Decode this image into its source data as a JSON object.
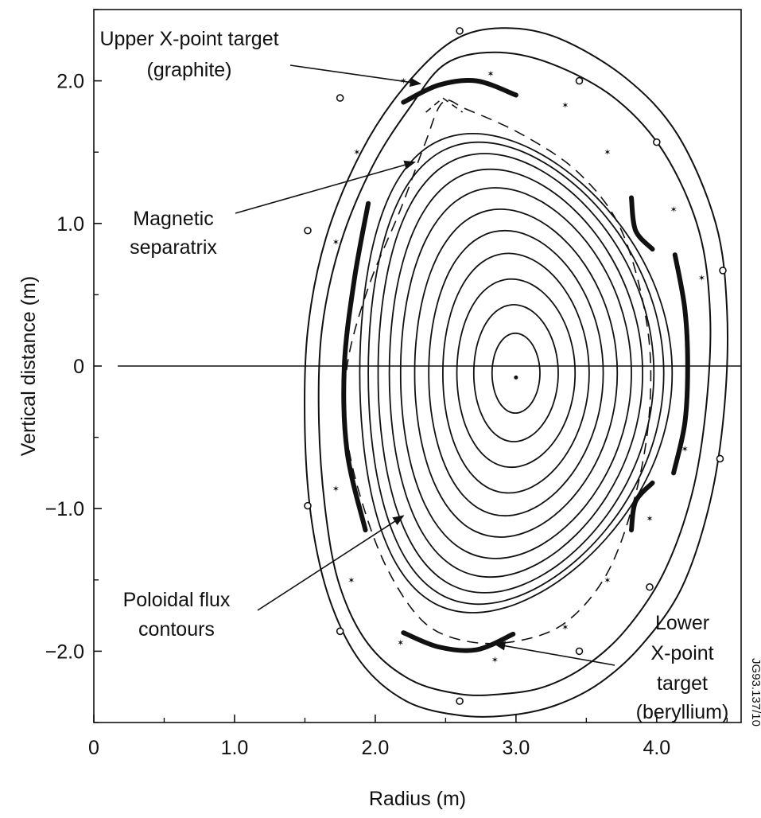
{
  "chart_data": {
    "type": "line",
    "xlabel": "Radius (m)",
    "ylabel": "Vertical distance (m)",
    "xlim": [
      0,
      4.6
    ],
    "ylim": [
      -2.5,
      2.5
    ],
    "x_ticks": [
      {
        "value": 0,
        "label": "0"
      },
      {
        "value": 1,
        "label": "1.0"
      },
      {
        "value": 2,
        "label": "2.0"
      },
      {
        "value": 3,
        "label": "3.0"
      },
      {
        "value": 4,
        "label": "4.0"
      }
    ],
    "y_ticks": [
      {
        "value": 2,
        "label": "2.0"
      },
      {
        "value": 1,
        "label": "1.0"
      },
      {
        "value": 0,
        "label": "0"
      },
      {
        "value": -1,
        "label": "−1.0"
      },
      {
        "value": -2,
        "label": "−2.0"
      }
    ],
    "magnetic_axis": {
      "r": 3.0,
      "z": -0.08
    },
    "flux_contours": {
      "center_r": 3.0,
      "center_z": -0.05,
      "levels": [
        {
          "a": 0.17,
          "b": 0.28
        },
        {
          "a": 0.3,
          "b": 0.48
        },
        {
          "a": 0.42,
          "b": 0.66
        },
        {
          "a": 0.52,
          "b": 0.84
        },
        {
          "a": 0.62,
          "b": 1.0
        },
        {
          "a": 0.72,
          "b": 1.15
        },
        {
          "a": 0.82,
          "b": 1.3
        },
        {
          "a": 0.9,
          "b": 1.43
        },
        {
          "a": 0.98,
          "b": 1.54
        },
        {
          "a": 1.05,
          "b": 1.62
        },
        {
          "a": 1.11,
          "b": 1.68
        }
      ]
    },
    "separatrix": {
      "r": [
        2.48,
        2.35,
        2.18,
        1.95,
        1.8,
        1.8,
        1.92,
        2.1,
        2.35,
        2.65,
        3.0,
        3.35,
        3.65,
        3.85,
        3.95,
        3.93,
        3.75,
        3.45,
        3.05,
        2.65,
        2.48
      ],
      "z": [
        1.85,
        1.55,
        1.1,
        0.55,
        0.0,
        -0.5,
        -1.0,
        -1.45,
        -1.8,
        -1.93,
        -1.93,
        -1.8,
        -1.45,
        -0.9,
        -0.3,
        0.3,
        0.95,
        1.35,
        1.62,
        1.8,
        1.85
      ]
    },
    "vessel_inner": {
      "r": [
        2.5,
        2.25,
        1.98,
        1.75,
        1.62,
        1.6,
        1.65,
        1.75,
        1.95,
        2.25,
        2.6,
        2.9,
        3.2,
        3.5,
        3.78,
        4.05,
        4.25,
        4.35,
        4.38,
        4.3,
        4.05,
        3.7,
        3.25,
        2.85,
        2.5
      ],
      "z": [
        2.12,
        1.82,
        1.4,
        0.85,
        0.25,
        -0.4,
        -1.05,
        -1.55,
        -1.95,
        -2.2,
        -2.3,
        -2.3,
        -2.25,
        -2.1,
        -1.85,
        -1.45,
        -0.9,
        -0.3,
        0.35,
        0.95,
        1.5,
        1.88,
        2.12,
        2.2,
        2.12
      ]
    },
    "vessel_outer": {
      "r": [
        2.55,
        2.2,
        1.9,
        1.65,
        1.52,
        1.5,
        1.55,
        1.68,
        1.9,
        2.22,
        2.6,
        2.95,
        3.28,
        3.6,
        3.9,
        4.18,
        4.38,
        4.48,
        4.5,
        4.42,
        4.15,
        3.78,
        3.3,
        2.9,
        2.55
      ],
      "z": [
        2.28,
        1.95,
        1.5,
        0.9,
        0.25,
        -0.45,
        -1.1,
        -1.65,
        -2.08,
        -2.35,
        -2.45,
        -2.45,
        -2.38,
        -2.22,
        -1.95,
        -1.55,
        -0.95,
        -0.3,
        0.38,
        1.0,
        1.62,
        2.02,
        2.3,
        2.37,
        2.28
      ]
    },
    "annotations": [
      {
        "lines": [
          "Upper X-point target",
          "(graphite)"
        ],
        "points_to": {
          "r": 2.32,
          "z": 1.98
        }
      },
      {
        "lines": [
          "Magnetic",
          "separatrix"
        ],
        "points_to": {
          "r": 2.28,
          "z": 1.43
        }
      },
      {
        "lines": [
          "Poloidal flux",
          "contours"
        ],
        "points_to": {
          "r": 2.2,
          "z": -1.05
        }
      },
      {
        "lines": [
          "Lower",
          "X-point",
          "target",
          "(beryllium)"
        ],
        "points_to": {
          "r": 2.85,
          "z": -1.95
        }
      }
    ],
    "reference_code": "JG93.137/10",
    "grid": false
  }
}
